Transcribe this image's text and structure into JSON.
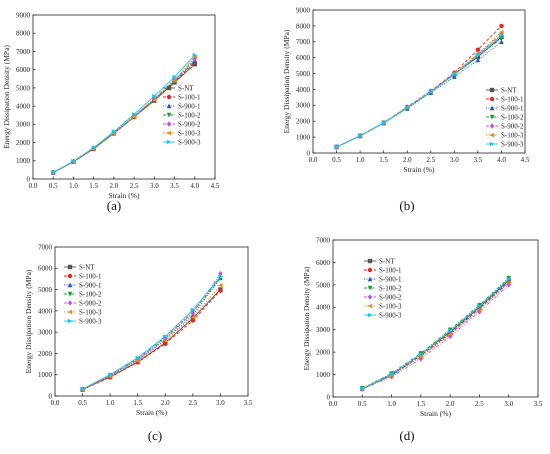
{
  "series_styles": [
    {
      "name": "S-NT",
      "color": "#555555",
      "marker": "square",
      "dash": ""
    },
    {
      "name": "S-100-1",
      "color": "#e8231f",
      "marker": "circle",
      "dash": "3,2"
    },
    {
      "name": "S-900-1",
      "color": "#1f4fe0",
      "marker": "triangle",
      "dash": "1,1.5"
    },
    {
      "name": "S-100-2",
      "color": "#1a9e3a",
      "marker": "tridown",
      "dash": "3,1.5,1,1.5"
    },
    {
      "name": "S-900-2",
      "color": "#c34fe6",
      "marker": "diamond",
      "dash": "3,1.5,1,1.5,1,1.5"
    },
    {
      "name": "S-100-3",
      "color": "#e68a14",
      "marker": "tileft",
      "dash": "1.5,1.5"
    },
    {
      "name": "S-900-3",
      "color": "#17c7e6",
      "marker": "tiright",
      "dash": ""
    }
  ],
  "chart_data": [
    {
      "type": "line",
      "caption": "(a)",
      "xlabel": "Strain (%)",
      "ylabel": "Energy Dissipation Density (MPa)",
      "xlim": [
        0,
        4.5
      ],
      "ylim": [
        0,
        9000
      ],
      "xticks": [
        0,
        0.5,
        1,
        1.5,
        2,
        2.5,
        3,
        3.5,
        4,
        4.5
      ],
      "xtick_labels": [
        "0.0",
        "0.5",
        "1.0",
        "1.5",
        "2.0",
        "2.5",
        "3.0",
        "3.5",
        "4.0",
        "4.5"
      ],
      "yticks": [
        0,
        1000,
        2000,
        3000,
        4000,
        5000,
        6000,
        7000,
        8000,
        9000
      ],
      "x": [
        0.5,
        1,
        1.5,
        2,
        2.5,
        3,
        3.5,
        4
      ],
      "legend": "right",
      "series": [
        {
          "name": "S-NT",
          "values": [
            350,
            950,
            1650,
            2500,
            3400,
            4300,
            5300,
            6300
          ]
        },
        {
          "name": "S-100-1",
          "values": [
            350,
            950,
            1650,
            2500,
            3420,
            4350,
            5350,
            6400
          ]
        },
        {
          "name": "S-900-1",
          "values": [
            360,
            970,
            1700,
            2550,
            3450,
            4400,
            5400,
            6500
          ]
        },
        {
          "name": "S-100-2",
          "values": [
            350,
            950,
            1650,
            2500,
            3400,
            4350,
            5350,
            6500
          ]
        },
        {
          "name": "S-900-2",
          "values": [
            350,
            960,
            1680,
            2530,
            3450,
            4400,
            5450,
            6600
          ]
        },
        {
          "name": "S-100-3",
          "values": [
            350,
            950,
            1650,
            2500,
            3400,
            4350,
            5400,
            6700
          ]
        },
        {
          "name": "S-900-3",
          "values": [
            360,
            980,
            1720,
            2600,
            3550,
            4550,
            5600,
            6800
          ]
        }
      ]
    },
    {
      "type": "line",
      "caption": "(b)",
      "xlabel": "Strain (%)",
      "ylabel": "Energy Dissipation Density (MPa)",
      "xlim": [
        0,
        4.5
      ],
      "ylim": [
        0,
        9000
      ],
      "xticks": [
        0,
        0.5,
        1,
        1.5,
        2,
        2.5,
        3,
        3.5,
        4,
        4.5
      ],
      "xtick_labels": [
        "0.0",
        "0.5",
        "1.0",
        "1.5",
        "2.0",
        "2.5",
        "3.0",
        "3.5",
        "4.0",
        "4.5"
      ],
      "yticks": [
        0,
        1000,
        2000,
        3000,
        4000,
        5000,
        6000,
        7000,
        8000,
        9000
      ],
      "x": [
        0.5,
        1,
        1.5,
        2,
        2.5,
        3,
        3.5,
        4
      ],
      "legend": "right",
      "series": [
        {
          "name": "S-NT",
          "values": [
            380,
            1080,
            1900,
            2850,
            3850,
            4950,
            6050,
            7300
          ]
        },
        {
          "name": "S-100-1",
          "values": [
            380,
            1080,
            1900,
            2900,
            3900,
            5050,
            6500,
            8000
          ]
        },
        {
          "name": "S-900-1",
          "values": [
            380,
            1070,
            1880,
            2800,
            3800,
            4800,
            5850,
            7000
          ]
        },
        {
          "name": "S-100-2",
          "values": [
            380,
            1080,
            1900,
            2850,
            3850,
            4950,
            6100,
            7200
          ]
        },
        {
          "name": "S-900-2",
          "values": [
            380,
            1080,
            1900,
            2880,
            3900,
            5000,
            6200,
            7500
          ]
        },
        {
          "name": "S-100-3",
          "values": [
            380,
            1080,
            1900,
            2870,
            3870,
            5000,
            6250,
            7600
          ]
        },
        {
          "name": "S-900-3",
          "values": [
            380,
            1080,
            1900,
            2850,
            3850,
            4950,
            6150,
            7400
          ]
        }
      ]
    },
    {
      "type": "line",
      "caption": "(c)",
      "xlabel": "Strain (%)",
      "ylabel": "Energy Dissipation Density (MPa)",
      "xlim": [
        0,
        3.5
      ],
      "ylim": [
        0,
        7000
      ],
      "xticks": [
        0,
        0.5,
        1,
        1.5,
        2,
        2.5,
        3,
        3.5
      ],
      "xtick_labels": [
        "0.0",
        "0.5",
        "1.0",
        "1.5",
        "2.0",
        "2.5",
        "3.0",
        "3.5"
      ],
      "yticks": [
        0,
        1000,
        2000,
        3000,
        4000,
        5000,
        6000,
        7000
      ],
      "x": [
        0.5,
        1,
        1.5,
        2,
        2.5,
        3
      ],
      "legend": "left",
      "series": [
        {
          "name": "S-NT",
          "values": [
            300,
            900,
            1600,
            2500,
            3650,
            5000
          ]
        },
        {
          "name": "S-100-1",
          "values": [
            300,
            880,
            1580,
            2450,
            3550,
            4950
          ]
        },
        {
          "name": "S-900-1",
          "values": [
            320,
            950,
            1700,
            2650,
            3800,
            5550
          ]
        },
        {
          "name": "S-100-2",
          "values": [
            320,
            980,
            1750,
            2750,
            3950,
            5550
          ]
        },
        {
          "name": "S-900-2",
          "values": [
            320,
            950,
            1700,
            2700,
            3900,
            5750
          ]
        },
        {
          "name": "S-100-3",
          "values": [
            300,
            920,
            1650,
            2600,
            3700,
            5200
          ]
        },
        {
          "name": "S-900-3",
          "values": [
            330,
            1000,
            1800,
            2800,
            4050,
            5600
          ]
        }
      ]
    },
    {
      "type": "line",
      "caption": "(d)",
      "xlabel": "Strain (%)",
      "ylabel": "Energy Dissipation Density (MPa)",
      "xlim": [
        0,
        3.5
      ],
      "ylim": [
        0,
        7000
      ],
      "xticks": [
        0,
        0.5,
        1,
        1.5,
        2,
        2.5,
        3,
        3.5
      ],
      "xtick_labels": [
        "0.0",
        "0.5",
        "1.0",
        "1.5",
        "2.0",
        "2.5",
        "3.0",
        "3.5"
      ],
      "yticks": [
        0,
        1000,
        2000,
        3000,
        4000,
        5000,
        6000,
        7000
      ],
      "x": [
        0.5,
        1,
        1.5,
        2,
        2.5,
        3
      ],
      "legend": "left",
      "series": [
        {
          "name": "S-NT",
          "values": [
            380,
            1000,
            1900,
            2900,
            4000,
            5200
          ]
        },
        {
          "name": "S-100-1",
          "values": [
            370,
            980,
            1850,
            2850,
            3950,
            5150
          ]
        },
        {
          "name": "S-900-1",
          "values": [
            370,
            950,
            1800,
            2800,
            3900,
            5100
          ]
        },
        {
          "name": "S-100-2",
          "values": [
            390,
            1050,
            1950,
            3000,
            4100,
            5300
          ]
        },
        {
          "name": "S-900-2",
          "values": [
            350,
            900,
            1700,
            2700,
            3800,
            5000
          ]
        },
        {
          "name": "S-100-3",
          "values": [
            360,
            960,
            1800,
            2800,
            3900,
            5100
          ]
        },
        {
          "name": "S-900-3",
          "values": [
            380,
            1020,
            1900,
            2950,
            4050,
            5250
          ]
        }
      ]
    }
  ]
}
